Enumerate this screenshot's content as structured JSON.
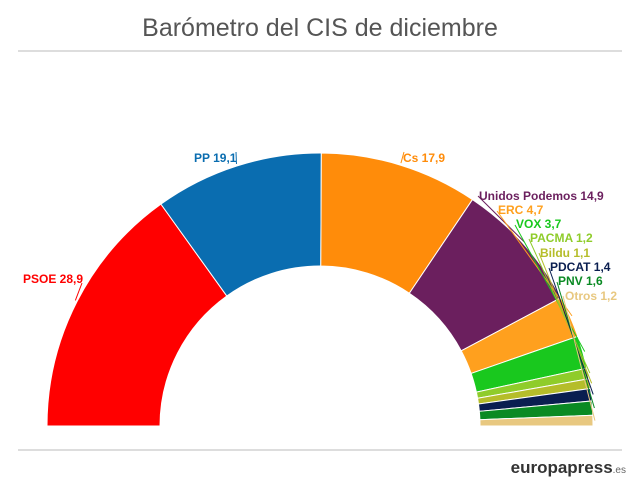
{
  "header": {
    "title": "Barómetro del CIS de diciembre"
  },
  "footer": {
    "brand": "europapress",
    "brand_suffix": ".es"
  },
  "chart_data": {
    "type": "pie",
    "subtype": "semicircle",
    "unit": "%",
    "slices": [
      {
        "label": "PSOE",
        "value": 28.9,
        "display": "28,9",
        "color": "#ff0000"
      },
      {
        "label": "PP",
        "value": 19.1,
        "display": "19,1",
        "color": "#0a6db0"
      },
      {
        "label": "Cs",
        "value": 17.9,
        "display": "17,9",
        "color": "#ff8c0a"
      },
      {
        "label": "Unidos Podemos",
        "value": 14.9,
        "display": "14,9",
        "color": "#6b1f5e"
      },
      {
        "label": "ERC",
        "value": 4.7,
        "display": "4,7",
        "color": "#ffa01e"
      },
      {
        "label": "VOX",
        "value": 3.7,
        "display": "3,7",
        "color": "#19c81e"
      },
      {
        "label": "PACMA",
        "value": 1.2,
        "display": "1,2",
        "color": "#8fcc2a"
      },
      {
        "label": "Bildu",
        "value": 1.1,
        "display": "1,1",
        "color": "#b5bd2a"
      },
      {
        "label": "PDCAT",
        "value": 1.4,
        "display": "1,4",
        "color": "#0a1e50"
      },
      {
        "label": "PNV",
        "value": 1.6,
        "display": "1,6",
        "color": "#0a8a23"
      },
      {
        "label": "Otros",
        "value": 1.2,
        "display": "1,2",
        "color": "#e8c880"
      }
    ]
  }
}
